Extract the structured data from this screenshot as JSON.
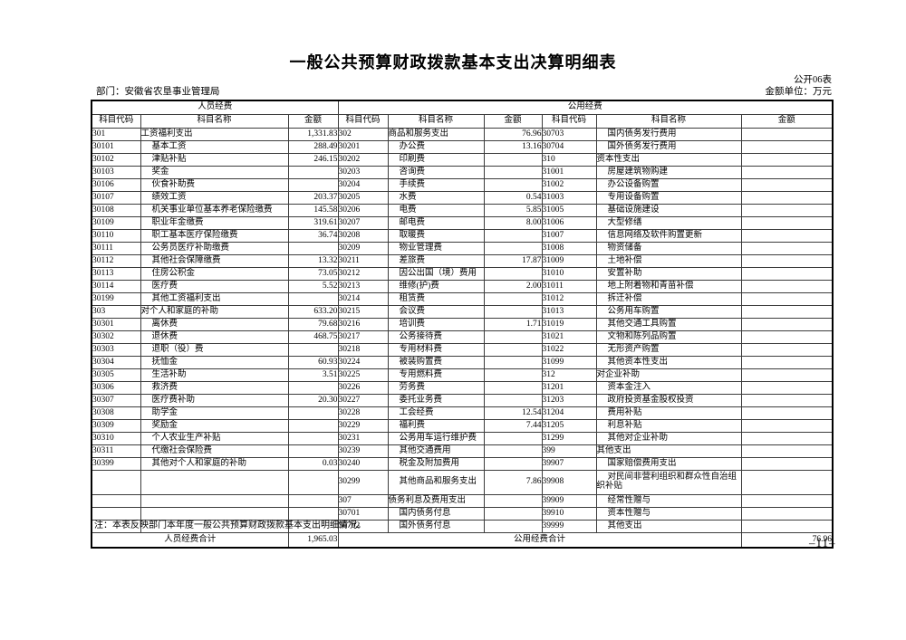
{
  "page": {
    "title": "一般公共预算财政拨款基本支出决算明细表",
    "table_code": "公开06表",
    "unit_label": "金额单位：万元",
    "department_label": "部门：安徽省农垦事业管理局",
    "note": "注：本表反映部门本年度一般公共预算财政拨款基本支出明细情况。",
    "page_number": "–11–"
  },
  "table": {
    "group_headers": {
      "personnel": "人员经费",
      "public": "公用经费"
    },
    "column_headers": {
      "code": "科目代码",
      "name": "科目名称",
      "amount": "金额"
    },
    "row_slots": 31,
    "tall_slot_index": 27,
    "personnel_rows": [
      {
        "code": "301",
        "name": "工资福利支出",
        "amount": "1,331.83",
        "level": 0
      },
      {
        "code": "30101",
        "name": "基本工资",
        "amount": "288.49",
        "level": 1
      },
      {
        "code": "30102",
        "name": "津贴补贴",
        "amount": "246.15",
        "level": 1
      },
      {
        "code": "30103",
        "name": "奖金",
        "amount": "",
        "level": 1
      },
      {
        "code": "30106",
        "name": "伙食补助费",
        "amount": "",
        "level": 1
      },
      {
        "code": "30107",
        "name": "绩效工资",
        "amount": "203.37",
        "level": 1
      },
      {
        "code": "30108",
        "name": "机关事业单位基本养老保险缴费",
        "amount": "145.58",
        "level": 1
      },
      {
        "code": "30109",
        "name": "职业年金缴费",
        "amount": "319.61",
        "level": 1
      },
      {
        "code": "30110",
        "name": "职工基本医疗保险缴费",
        "amount": "36.74",
        "level": 1
      },
      {
        "code": "30111",
        "name": "公务员医疗补助缴费",
        "amount": "",
        "level": 1
      },
      {
        "code": "30112",
        "name": "其他社会保障缴费",
        "amount": "13.32",
        "level": 1
      },
      {
        "code": "30113",
        "name": "住房公积金",
        "amount": "73.05",
        "level": 1
      },
      {
        "code": "30114",
        "name": "医疗费",
        "amount": "5.52",
        "level": 1
      },
      {
        "code": "30199",
        "name": "其他工资福利支出",
        "amount": "",
        "level": 1
      },
      {
        "code": "303",
        "name": "对个人和家庭的补助",
        "amount": "633.20",
        "level": 0
      },
      {
        "code": "30301",
        "name": "离休费",
        "amount": "79.68",
        "level": 1
      },
      {
        "code": "30302",
        "name": "退休费",
        "amount": "468.75",
        "level": 1
      },
      {
        "code": "30303",
        "name": "退职（役）费",
        "amount": "",
        "level": 1
      },
      {
        "code": "30304",
        "name": "抚恤金",
        "amount": "60.93",
        "level": 1
      },
      {
        "code": "30305",
        "name": "生活补助",
        "amount": "3.51",
        "level": 1
      },
      {
        "code": "30306",
        "name": "救济费",
        "amount": "",
        "level": 1
      },
      {
        "code": "30307",
        "name": "医疗费补助",
        "amount": "20.30",
        "level": 1
      },
      {
        "code": "30308",
        "name": "助学金",
        "amount": "",
        "level": 1
      },
      {
        "code": "30309",
        "name": "奖励金",
        "amount": "",
        "level": 1
      },
      {
        "code": "30310",
        "name": "个人农业生产补贴",
        "amount": "",
        "level": 1
      },
      {
        "code": "30311",
        "name": "代缴社会保险费",
        "amount": "",
        "level": 1
      },
      {
        "code": "30399",
        "name": "其他对个人和家庭的补助",
        "amount": "0.03",
        "level": 1
      }
    ],
    "public_rows_1": [
      {
        "code": "302",
        "name": "商品和服务支出",
        "amount": "76.96",
        "level": 0
      },
      {
        "code": "30201",
        "name": "办公费",
        "amount": "13.16",
        "level": 1
      },
      {
        "code": "30202",
        "name": "印刷费",
        "amount": "",
        "level": 1
      },
      {
        "code": "30203",
        "name": "咨询费",
        "amount": "",
        "level": 1
      },
      {
        "code": "30204",
        "name": "手续费",
        "amount": "",
        "level": 1
      },
      {
        "code": "30205",
        "name": "水费",
        "amount": "0.54",
        "level": 1
      },
      {
        "code": "30206",
        "name": "电费",
        "amount": "5.85",
        "level": 1
      },
      {
        "code": "30207",
        "name": "邮电费",
        "amount": "8.00",
        "level": 1
      },
      {
        "code": "30208",
        "name": "取暖费",
        "amount": "",
        "level": 1
      },
      {
        "code": "30209",
        "name": "物业管理费",
        "amount": "",
        "level": 1
      },
      {
        "code": "30211",
        "name": "差旅费",
        "amount": "17.87",
        "level": 1
      },
      {
        "code": "30212",
        "name": "因公出国（境）费用",
        "amount": "",
        "level": 1
      },
      {
        "code": "30213",
        "name": "维修(护)费",
        "amount": "2.00",
        "level": 1
      },
      {
        "code": "30214",
        "name": "租赁费",
        "amount": "",
        "level": 1
      },
      {
        "code": "30215",
        "name": "会议费",
        "amount": "",
        "level": 1
      },
      {
        "code": "30216",
        "name": "培训费",
        "amount": "1.71",
        "level": 1
      },
      {
        "code": "30217",
        "name": "公务接待费",
        "amount": "",
        "level": 1
      },
      {
        "code": "30218",
        "name": "专用材料费",
        "amount": "",
        "level": 1
      },
      {
        "code": "30224",
        "name": "被装购置费",
        "amount": "",
        "level": 1
      },
      {
        "code": "30225",
        "name": "专用燃料费",
        "amount": "",
        "level": 1
      },
      {
        "code": "30226",
        "name": "劳务费",
        "amount": "",
        "level": 1
      },
      {
        "code": "30227",
        "name": "委托业务费",
        "amount": "",
        "level": 1
      },
      {
        "code": "30228",
        "name": "工会经费",
        "amount": "12.54",
        "level": 1
      },
      {
        "code": "30229",
        "name": "福利费",
        "amount": "7.44",
        "level": 1
      },
      {
        "code": "30231",
        "name": "公务用车运行维护费",
        "amount": "",
        "level": 1
      },
      {
        "code": "30239",
        "name": "其他交通费用",
        "amount": "",
        "level": 1
      },
      {
        "code": "30240",
        "name": "税金及附加费用",
        "amount": "",
        "level": 1
      },
      {
        "code": "30299",
        "name": "其他商品和服务支出",
        "amount": "7.86",
        "level": 1
      },
      {
        "code": "307",
        "name": "债务利息及费用支出",
        "amount": "",
        "level": 0
      },
      {
        "code": "30701",
        "name": "国内债务付息",
        "amount": "",
        "level": 1
      },
      {
        "code": "30702",
        "name": "国外债务付息",
        "amount": "",
        "level": 1
      }
    ],
    "public_rows_2": [
      {
        "code": "30703",
        "name": "国内债务发行费用",
        "amount": "",
        "level": 1
      },
      {
        "code": "30704",
        "name": "国外债务发行费用",
        "amount": "",
        "level": 1
      },
      {
        "code": "310",
        "name": "资本性支出",
        "amount": "",
        "level": 0
      },
      {
        "code": "31001",
        "name": "房屋建筑物购建",
        "amount": "",
        "level": 1
      },
      {
        "code": "31002",
        "name": "办公设备购置",
        "amount": "",
        "level": 1
      },
      {
        "code": "31003",
        "name": "专用设备购置",
        "amount": "",
        "level": 1
      },
      {
        "code": "31005",
        "name": "基础设施建设",
        "amount": "",
        "level": 1
      },
      {
        "code": "31006",
        "name": "大型修缮",
        "amount": "",
        "level": 1
      },
      {
        "code": "31007",
        "name": "信息网络及软件购置更新",
        "amount": "",
        "level": 1
      },
      {
        "code": "31008",
        "name": "物资储备",
        "amount": "",
        "level": 1
      },
      {
        "code": "31009",
        "name": "土地补偿",
        "amount": "",
        "level": 1
      },
      {
        "code": "31010",
        "name": "安置补助",
        "amount": "",
        "level": 1
      },
      {
        "code": "31011",
        "name": "地上附着物和青苗补偿",
        "amount": "",
        "level": 1
      },
      {
        "code": "31012",
        "name": "拆迁补偿",
        "amount": "",
        "level": 1
      },
      {
        "code": "31013",
        "name": "公务用车购置",
        "amount": "",
        "level": 1
      },
      {
        "code": "31019",
        "name": "其他交通工具购置",
        "amount": "",
        "level": 1
      },
      {
        "code": "31021",
        "name": "文物和陈列品购置",
        "amount": "",
        "level": 1
      },
      {
        "code": "31022",
        "name": "无形资产购置",
        "amount": "",
        "level": 1
      },
      {
        "code": "31099",
        "name": "其他资本性支出",
        "amount": "",
        "level": 1
      },
      {
        "code": "312",
        "name": "对企业补助",
        "amount": "",
        "level": 0
      },
      {
        "code": "31201",
        "name": "资本金注入",
        "amount": "",
        "level": 1
      },
      {
        "code": "31203",
        "name": "政府投资基金股权投资",
        "amount": "",
        "level": 1
      },
      {
        "code": "31204",
        "name": "费用补贴",
        "amount": "",
        "level": 1
      },
      {
        "code": "31205",
        "name": "利息补贴",
        "amount": "",
        "level": 1
      },
      {
        "code": "31299",
        "name": "其他对企业补助",
        "amount": "",
        "level": 1
      },
      {
        "code": "399",
        "name": "其他支出",
        "amount": "",
        "level": 0
      },
      {
        "code": "39907",
        "name": "国家赔偿费用支出",
        "amount": "",
        "level": 1
      },
      {
        "code": "39908",
        "name": "对民间非营利组织和群众性自治组织补贴",
        "amount": "",
        "level": 1
      },
      {
        "code": "39909",
        "name": "经常性赠与",
        "amount": "",
        "level": 1
      },
      {
        "code": "39910",
        "name": "资本性赠与",
        "amount": "",
        "level": 1
      },
      {
        "code": "39999",
        "name": "其他支出",
        "amount": "",
        "level": 1
      }
    ],
    "totals": {
      "personnel_label": "人员经费合计",
      "personnel_amount": "1,965.03",
      "public_label": "公用经费合计",
      "public_amount": "76.96"
    }
  }
}
